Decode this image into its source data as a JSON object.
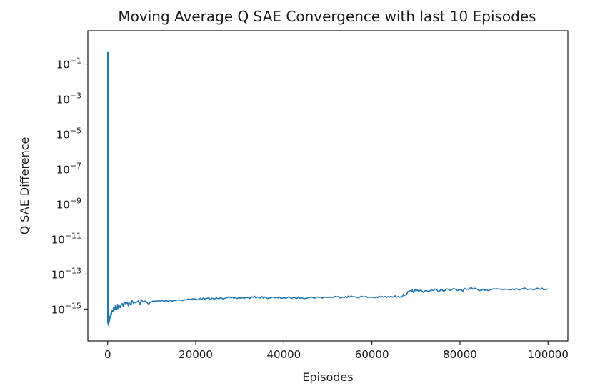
{
  "chart_data": {
    "type": "line",
    "title": "Moving Average Q SAE Convergence with last 10 Episodes",
    "xlabel": "Episodes",
    "ylabel": "Q SAE Difference",
    "xscale": "linear",
    "yscale": "log",
    "xlim": [
      -4500,
      104500
    ],
    "ylim": [
      1.5e-17,
      8
    ],
    "grid": false,
    "legend": "none",
    "x_ticks": [
      {
        "value": 0,
        "label": "0"
      },
      {
        "value": 20000,
        "label": "20000"
      },
      {
        "value": 40000,
        "label": "40000"
      },
      {
        "value": 60000,
        "label": "60000"
      },
      {
        "value": 80000,
        "label": "80000"
      },
      {
        "value": 100000,
        "label": "100000"
      }
    ],
    "y_ticks": [
      {
        "value": 0.1,
        "base": "10",
        "exp": "−1"
      },
      {
        "value": 0.001,
        "base": "10",
        "exp": "−3"
      },
      {
        "value": 1e-05,
        "base": "10",
        "exp": "−5"
      },
      {
        "value": 1e-07,
        "base": "10",
        "exp": "−7"
      },
      {
        "value": 1e-09,
        "base": "10",
        "exp": "−9"
      },
      {
        "value": 1e-11,
        "base": "10",
        "exp": "−11"
      },
      {
        "value": 1e-13,
        "base": "10",
        "exp": "−13"
      },
      {
        "value": 1e-15,
        "base": "10",
        "exp": "−15"
      }
    ],
    "colors": {
      "series": "#1f77b4"
    },
    "series": [
      {
        "x": [
          0,
          0,
          150,
          150,
          300,
          600,
          1000,
          1500,
          2000,
          2500,
          3000,
          4000,
          5000,
          6000,
          8000,
          10000,
          12000,
          14000,
          16000,
          18000,
          20000,
          22000,
          24000,
          26000,
          27000,
          28000,
          30000,
          32000,
          34000,
          36000,
          38000,
          40000,
          42000,
          44000,
          46000,
          48000,
          50000,
          52000,
          54000,
          56000,
          58000,
          60000,
          62000,
          64000,
          66000,
          67000,
          68000,
          69000,
          70000,
          72000,
          74000,
          76000,
          78000,
          80000,
          82000,
          84000,
          86000,
          88000,
          90000,
          92000,
          94000,
          96000,
          98000,
          100000
        ],
        "y": [
          1.5e-16,
          0.45,
          0.45,
          1.2e-16,
          2e-16,
          4e-16,
          8e-16,
          1.1e-15,
          1.3e-15,
          1.5e-15,
          1.7e-15,
          2e-15,
          2.2e-15,
          2.3e-15,
          2.5e-15,
          2.6e-15,
          2.9e-15,
          3e-15,
          3.3e-15,
          3.5e-15,
          3.7e-15,
          3.8e-15,
          3.9e-15,
          4.1e-15,
          4.8e-15,
          4.2e-15,
          4.3e-15,
          4.4e-15,
          4.9e-15,
          4.5e-15,
          4.4e-15,
          4.4e-15,
          4.4e-15,
          4.5e-15,
          4.6e-15,
          4.6e-15,
          4.7e-15,
          4.9e-15,
          5.1e-15,
          5e-15,
          4.9e-15,
          4.7e-15,
          4.8e-15,
          4.9e-15,
          5.2e-15,
          5.6e-15,
          8e-15,
          1e-14,
          1.08e-14,
          1.1e-14,
          1.15e-14,
          1.2e-14,
          1.22e-14,
          1.25e-14,
          1.3e-14,
          1.32e-14,
          1.35e-14,
          1.38e-14,
          1.4e-14,
          1.4e-14,
          1.42e-14,
          1.42e-14,
          1.42e-14,
          1.4e-14
        ]
      }
    ]
  }
}
